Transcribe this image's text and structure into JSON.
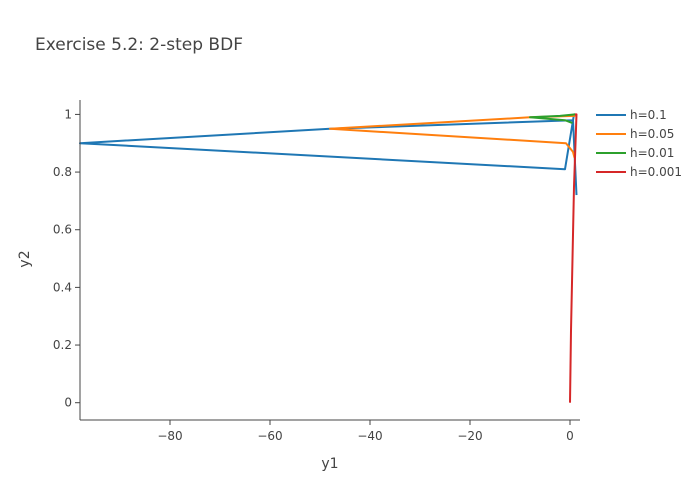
{
  "chart_data": {
    "type": "line",
    "title": "Exercise 5.2: 2-step BDF",
    "xlabel": "y1",
    "ylabel": "y2",
    "xlim": [
      -98,
      2
    ],
    "ylim": [
      -0.06,
      1.05
    ],
    "xticks": [
      -80,
      -60,
      -40,
      -20,
      0
    ],
    "yticks": [
      0,
      0.2,
      0.4,
      0.6,
      0.8,
      1
    ],
    "grid": false,
    "legend_position": "top-right",
    "series": [
      {
        "name": "h=0.1",
        "color": "#1f77b4",
        "x": [
          1.0,
          0.8,
          -1.0,
          -98.0,
          -48.0,
          0.6,
          1.3
        ],
        "y": [
          1.0,
          1.0,
          0.81,
          0.9,
          0.95,
          0.98,
          0.72
        ]
      },
      {
        "name": "h=0.05",
        "color": "#ff7f0e",
        "x": [
          1.0,
          0.9,
          -8.0,
          -48.0,
          -0.8,
          0.6,
          0.9
        ],
        "y": [
          1.0,
          0.995,
          0.99,
          0.95,
          0.9,
          0.87,
          0.85
        ]
      },
      {
        "name": "h=0.01",
        "color": "#2ca02c",
        "x": [
          1.0,
          -2.0,
          -8.0,
          -1.0,
          0.5
        ],
        "y": [
          1.0,
          0.995,
          0.99,
          0.98,
          0.97
        ]
      },
      {
        "name": "h=0.001",
        "color": "#d62728",
        "x": [
          1.0,
          1.3,
          0.8,
          0.5,
          0.2,
          0.0
        ],
        "y": [
          1.0,
          1.0,
          0.75,
          0.5,
          0.25,
          0.0
        ]
      }
    ]
  }
}
